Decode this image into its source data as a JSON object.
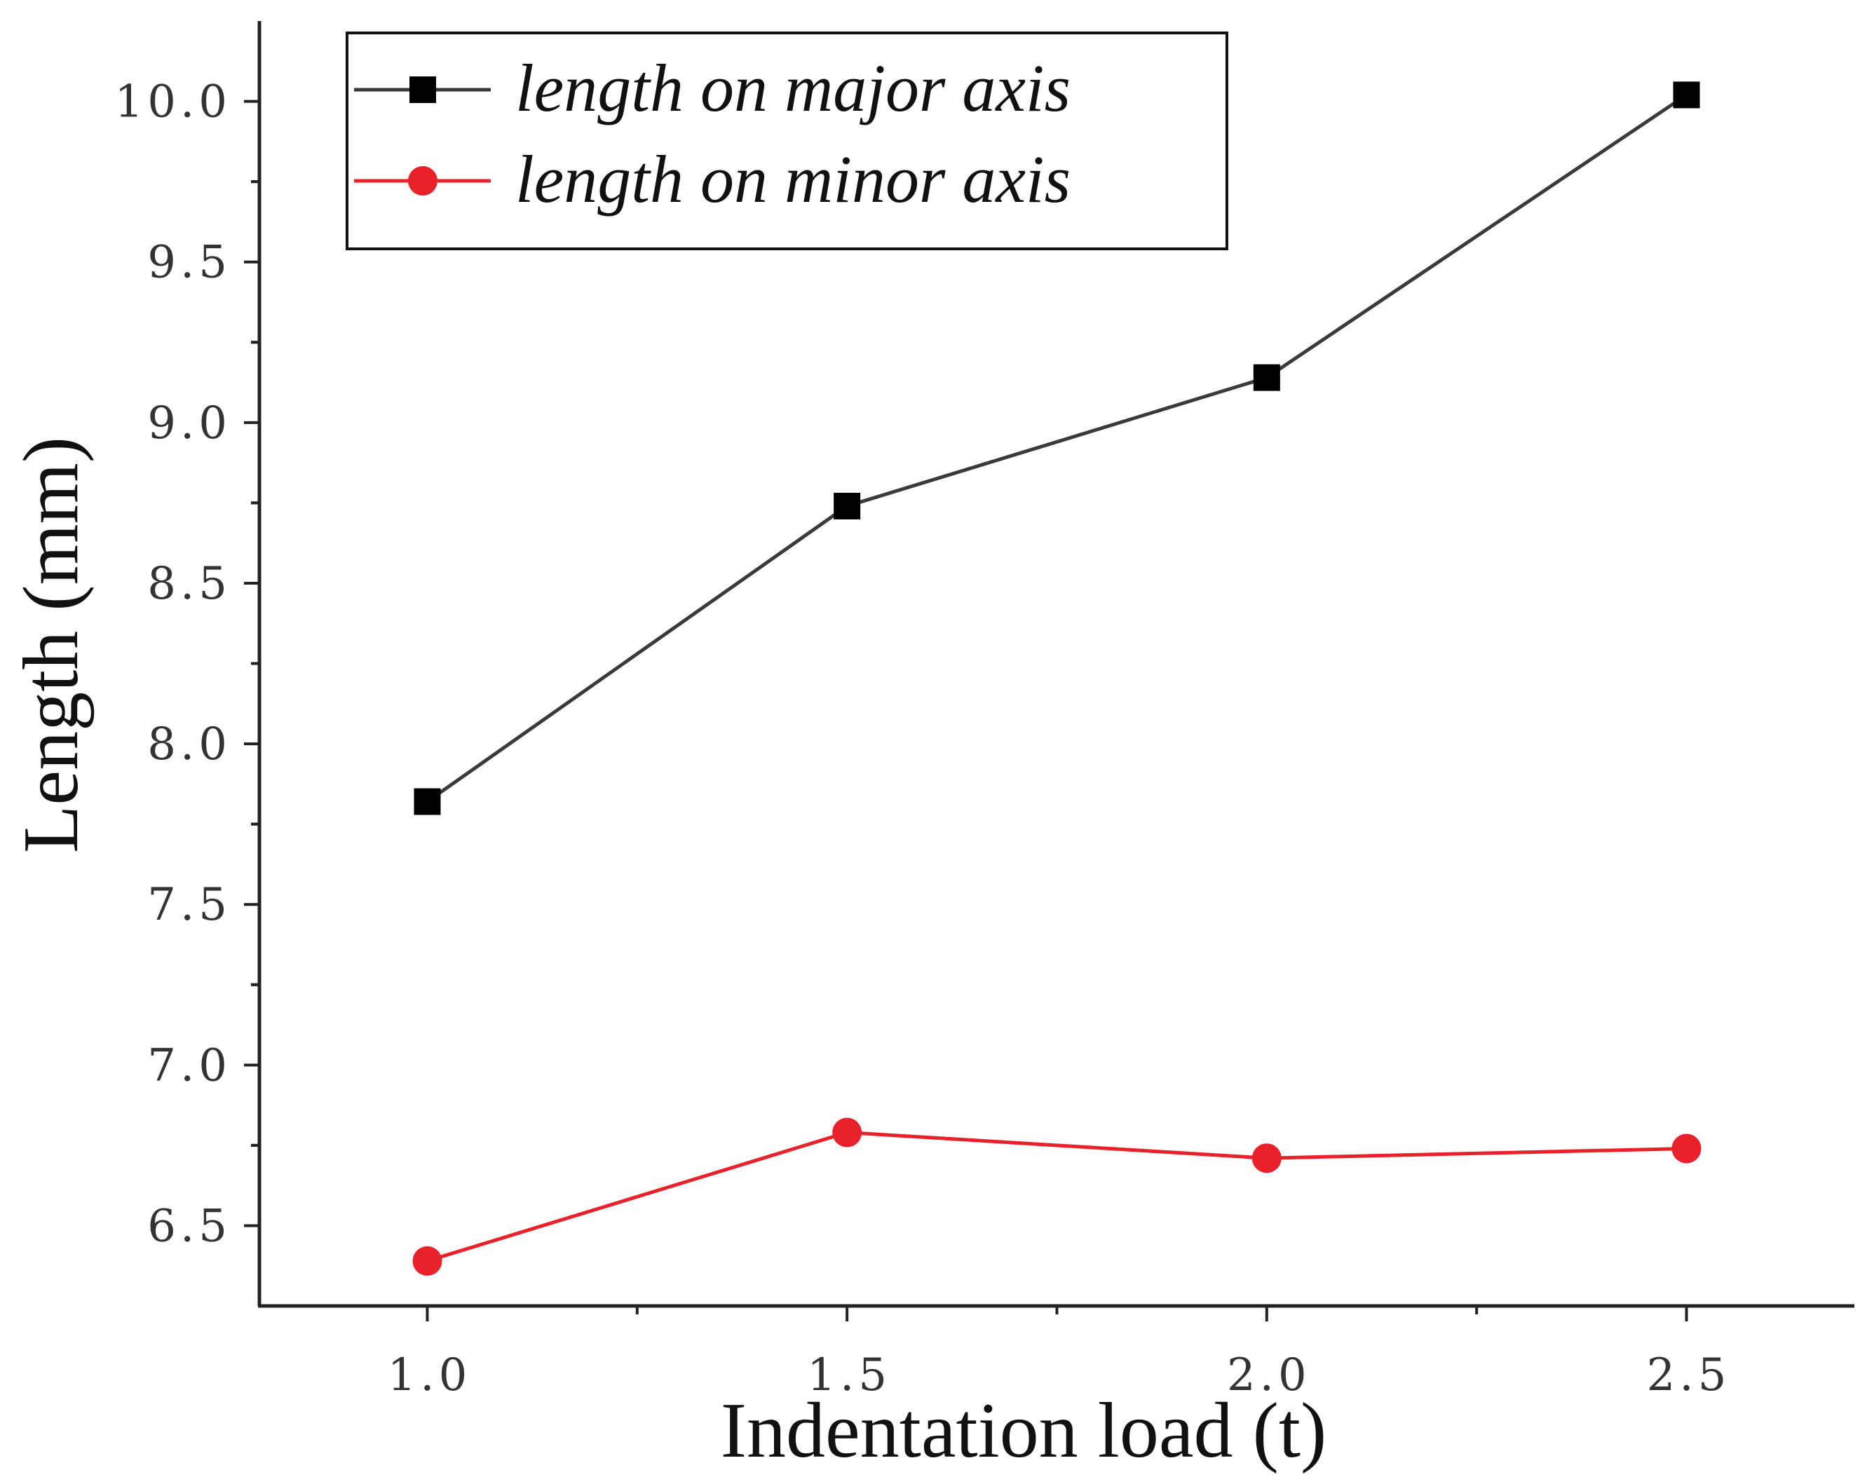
{
  "chart_data": {
    "type": "line",
    "title": "",
    "xlabel": "Indentation load (t)",
    "ylabel": "Length (mm)",
    "x": [
      1.0,
      1.5,
      2.0,
      2.5
    ],
    "x_tick_labels": [
      "1.0",
      "1.5",
      "2.0",
      "2.5"
    ],
    "y_tick_labels": [
      "6.5",
      "7.0",
      "7.5",
      "8.0",
      "8.5",
      "9.0",
      "9.5",
      "10.0"
    ],
    "y_ticks": [
      6.5,
      7.0,
      7.5,
      8.0,
      8.5,
      9.0,
      9.5,
      10.0
    ],
    "xlim": [
      0.8,
      2.7
    ],
    "ylim": [
      6.25,
      10.25
    ],
    "grid": false,
    "legend_position": "top-left",
    "series": [
      {
        "name": "length on major axis",
        "values": [
          7.82,
          8.74,
          9.14,
          10.02
        ],
        "color": "#000000",
        "line_color": "#3a3a3a",
        "marker": "square"
      },
      {
        "name": "length on minor axis",
        "values": [
          6.39,
          6.79,
          6.71,
          6.74
        ],
        "color": "#e8212a",
        "line_color": "#e8212a",
        "marker": "circle"
      }
    ]
  }
}
